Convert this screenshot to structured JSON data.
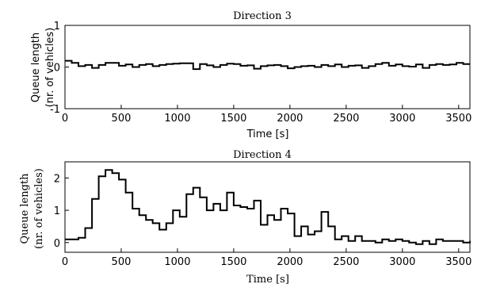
{
  "chart_data": [
    {
      "type": "line",
      "step": true,
      "title": "Direction 3",
      "xlabel": "Time [s]",
      "ylabel": [
        "Queue length",
        "(nr. of vehicles)"
      ],
      "xlim": [
        0,
        3600
      ],
      "ylim": [
        -1,
        1
      ],
      "xticks": [
        0,
        500,
        1000,
        1500,
        2000,
        2500,
        3000,
        3500
      ],
      "yticks": [
        -1,
        0,
        1
      ],
      "grid": false,
      "series": [
        {
          "x": [
            0,
            60,
            120,
            180,
            240,
            300,
            360,
            420,
            480,
            540,
            600,
            660,
            720,
            780,
            840,
            900,
            960,
            1020,
            1080,
            1140,
            1200,
            1260,
            1320,
            1380,
            1440,
            1500,
            1560,
            1620,
            1680,
            1740,
            1800,
            1860,
            1920,
            1980,
            2040,
            2100,
            2160,
            2220,
            2280,
            2340,
            2400,
            2460,
            2520,
            2580,
            2640,
            2700,
            2760,
            2820,
            2880,
            2940,
            3000,
            3060,
            3120,
            3180,
            3240,
            3300,
            3360,
            3420,
            3480,
            3540,
            3600
          ],
          "values": [
            0.15,
            0.1,
            0.02,
            0.05,
            -0.02,
            0.05,
            0.1,
            0.1,
            0.03,
            0.06,
            0.0,
            0.05,
            0.07,
            0.02,
            0.05,
            0.07,
            0.08,
            0.09,
            0.09,
            -0.05,
            0.07,
            0.04,
            0.0,
            0.05,
            0.08,
            0.07,
            0.03,
            0.04,
            -0.04,
            0.02,
            0.04,
            0.05,
            0.02,
            -0.03,
            0.0,
            0.02,
            0.03,
            0.0,
            0.05,
            0.02,
            0.06,
            0.0,
            0.03,
            0.04,
            -0.02,
            0.02,
            0.07,
            0.1,
            0.03,
            0.06,
            0.02,
            0.01,
            0.06,
            -0.02,
            0.05,
            0.07,
            0.05,
            0.06,
            0.1,
            0.07,
            0.07
          ]
        }
      ]
    },
    {
      "type": "line",
      "step": true,
      "title": "Direction 4",
      "xlabel": "Time [s]",
      "ylabel": [
        "Queue length",
        "(nr. of vehicles)"
      ],
      "xlim": [
        0,
        3600
      ],
      "ylim": [
        -0.3,
        2.5
      ],
      "xticks": [
        0,
        500,
        1000,
        1500,
        2000,
        2500,
        3000,
        3500
      ],
      "yticks": [
        0,
        1,
        2
      ],
      "grid": false,
      "series": [
        {
          "x": [
            0,
            60,
            120,
            180,
            240,
            300,
            360,
            420,
            480,
            540,
            600,
            660,
            720,
            780,
            840,
            900,
            960,
            1020,
            1080,
            1140,
            1200,
            1260,
            1320,
            1380,
            1440,
            1500,
            1560,
            1620,
            1680,
            1740,
            1800,
            1860,
            1920,
            1980,
            2040,
            2100,
            2160,
            2220,
            2280,
            2340,
            2400,
            2460,
            2520,
            2580,
            2640,
            2700,
            2760,
            2820,
            2880,
            2940,
            3000,
            3060,
            3120,
            3180,
            3240,
            3300,
            3360,
            3420,
            3480,
            3540,
            3600
          ],
          "values": [
            0.1,
            0.1,
            0.15,
            0.45,
            1.35,
            2.05,
            2.25,
            2.15,
            1.95,
            1.55,
            1.05,
            0.85,
            0.7,
            0.6,
            0.4,
            0.6,
            1.0,
            0.8,
            1.5,
            1.7,
            1.4,
            1.0,
            1.2,
            1.0,
            1.55,
            1.15,
            1.1,
            1.05,
            1.3,
            0.55,
            0.85,
            0.7,
            1.05,
            0.9,
            0.2,
            0.5,
            0.25,
            0.35,
            0.95,
            0.5,
            0.1,
            0.2,
            0.05,
            0.2,
            0.05,
            0.05,
            0.0,
            0.1,
            0.05,
            0.1,
            0.05,
            0.0,
            -0.05,
            0.05,
            -0.05,
            0.1,
            0.05,
            0.05,
            0.05,
            0.0,
            0.05
          ]
        }
      ]
    }
  ]
}
